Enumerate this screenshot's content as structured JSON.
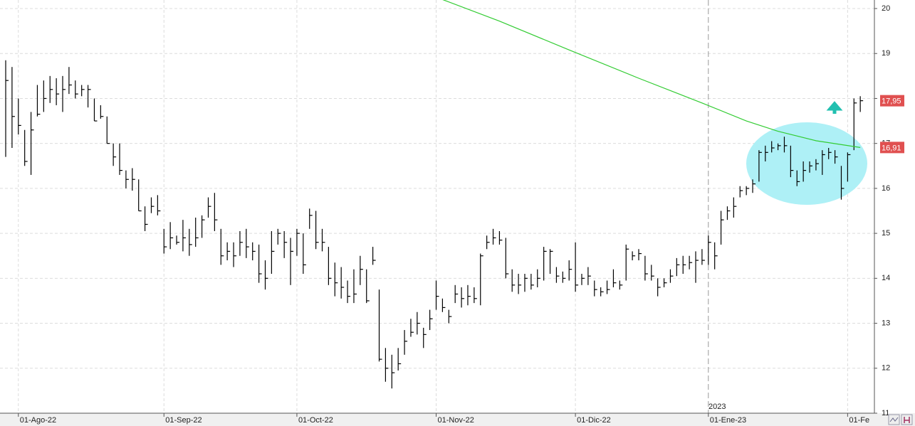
{
  "chart_data": {
    "type": "ohlc",
    "categories": [
      null,
      null,
      "01-Ago-22",
      null,
      null,
      null,
      null,
      null,
      null,
      null,
      null,
      null,
      null,
      null,
      null,
      null,
      null,
      null,
      null,
      null,
      null,
      null,
      null,
      null,
      null,
      "01-Sep-22",
      null,
      null,
      null,
      null,
      null,
      null,
      null,
      null,
      null,
      null,
      null,
      null,
      null,
      null,
      null,
      null,
      null,
      null,
      null,
      null,
      "01-Oct-22",
      null,
      null,
      null,
      null,
      null,
      null,
      null,
      null,
      null,
      null,
      null,
      null,
      null,
      null,
      null,
      null,
      null,
      null,
      null,
      null,
      null,
      "01-Nov-22",
      null,
      null,
      null,
      null,
      null,
      null,
      null,
      null,
      null,
      null,
      null,
      null,
      null,
      null,
      null,
      null,
      null,
      null,
      null,
      null,
      null,
      "01-Dic-22",
      null,
      null,
      null,
      null,
      null,
      null,
      null,
      null,
      null,
      null,
      null,
      null,
      null,
      null,
      null,
      null,
      null,
      null,
      null,
      null,
      "01-Ene-23",
      null,
      null,
      null,
      null,
      null,
      null,
      null,
      null,
      null,
      null,
      null,
      null,
      null,
      null,
      null,
      null,
      null,
      null,
      null,
      null,
      null,
      "01-Fe",
      null,
      null
    ],
    "high": [
      18.85,
      18.7,
      18.0,
      17.3,
      17.7,
      18.3,
      18.4,
      18.5,
      18.45,
      18.5,
      18.7,
      18.4,
      18.3,
      18.3,
      18.0,
      17.85,
      17.6,
      17.0,
      17.0,
      16.4,
      16.45,
      16.2,
      15.6,
      15.8,
      15.85,
      15.1,
      15.25,
      14.95,
      15.3,
      15.1,
      15.35,
      15.4,
      15.8,
      15.9,
      15.1,
      14.8,
      14.8,
      15.05,
      15.1,
      14.8,
      14.75,
      14.4,
      15.05,
      15.1,
      15.05,
      14.9,
      15.1,
      15.0,
      15.55,
      15.5,
      15.1,
      14.7,
      14.35,
      14.25,
      13.95,
      14.2,
      14.5,
      14.2,
      14.7,
      13.75,
      12.45,
      12.3,
      12.45,
      12.85,
      13.1,
      13.25,
      12.9,
      13.3,
      13.95,
      13.55,
      13.3,
      13.85,
      13.8,
      13.85,
      13.8,
      14.55,
      14.95,
      15.1,
      15.05,
      14.9,
      14.2,
      14.1,
      14.1,
      14.1,
      14.2,
      14.7,
      14.65,
      14.25,
      14.15,
      14.4,
      14.8,
      14.1,
      14.25,
      13.95,
      13.8,
      13.95,
      14.2,
      13.95,
      14.75,
      14.6,
      14.65,
      14.5,
      14.3,
      14.0,
      14.0,
      14.2,
      14.45,
      14.5,
      14.5,
      14.6,
      14.65,
      14.95,
      14.8,
      15.5,
      15.6,
      15.8,
      16.05,
      16.05,
      16.2,
      16.85,
      16.95,
      17.05,
      17.0,
      17.15,
      16.95,
      16.4,
      16.6,
      16.6,
      16.65,
      16.85,
      16.9,
      16.85,
      16.5,
      16.8,
      18.0,
      18.05
    ],
    "low": [
      16.7,
      16.9,
      17.2,
      16.5,
      16.3,
      17.6,
      17.7,
      17.9,
      17.85,
      17.7,
      18.1,
      18.0,
      18.05,
      17.8,
      17.5,
      17.55,
      17.0,
      16.5,
      16.3,
      16.0,
      15.95,
      15.5,
      15.05,
      15.45,
      15.4,
      14.55,
      14.65,
      14.75,
      14.6,
      14.5,
      14.7,
      14.9,
      15.35,
      15.05,
      14.3,
      14.4,
      14.25,
      14.5,
      14.45,
      14.4,
      13.9,
      13.75,
      14.1,
      14.75,
      14.45,
      13.85,
      14.5,
      14.1,
      15.1,
      14.65,
      14.6,
      13.85,
      13.6,
      13.55,
      13.45,
      13.45,
      13.85,
      13.45,
      14.3,
      12.15,
      11.7,
      11.55,
      11.95,
      12.3,
      12.7,
      12.75,
      12.45,
      12.85,
      13.3,
      13.25,
      13.0,
      13.45,
      13.35,
      13.4,
      13.45,
      13.4,
      14.65,
      14.75,
      14.75,
      14.0,
      13.7,
      13.65,
      13.7,
      13.75,
      13.8,
      13.95,
      14.1,
      13.9,
      13.9,
      13.95,
      13.7,
      13.85,
      13.85,
      13.6,
      13.6,
      13.65,
      13.8,
      13.75,
      13.95,
      14.4,
      14.4,
      13.95,
      13.95,
      13.6,
      13.8,
      13.9,
      14.05,
      14.1,
      14.2,
      13.9,
      14.3,
      14.3,
      14.2,
      14.75,
      15.3,
      15.35,
      15.8,
      15.85,
      15.9,
      16.15,
      16.6,
      16.8,
      16.85,
      16.8,
      16.25,
      16.05,
      16.15,
      16.35,
      16.4,
      16.3,
      16.65,
      16.55,
      15.75,
      16.15,
      16.85,
      17.7
    ],
    "close": [
      18.4,
      17.6,
      17.4,
      16.6,
      17.3,
      17.65,
      18.0,
      18.2,
      18.1,
      18.2,
      18.3,
      18.1,
      18.2,
      18.2,
      17.5,
      17.6,
      17.0,
      16.7,
      16.4,
      16.2,
      16.2,
      15.5,
      15.2,
      15.6,
      15.5,
      14.7,
      14.9,
      14.8,
      14.9,
      14.75,
      14.9,
      15.3,
      15.6,
      15.3,
      14.5,
      14.6,
      14.5,
      14.8,
      14.7,
      14.6,
      14.1,
      14.0,
      14.6,
      15.0,
      14.8,
      14.6,
      15.0,
      14.3,
      15.4,
      14.8,
      14.8,
      14.0,
      13.9,
      13.8,
      13.6,
      13.65,
      14.2,
      13.5,
      14.4,
      12.2,
      12.0,
      11.9,
      12.1,
      12.6,
      12.8,
      13.0,
      12.75,
      13.1,
      13.6,
      13.35,
      13.15,
      13.65,
      13.55,
      13.6,
      13.55,
      14.5,
      14.8,
      14.9,
      14.85,
      14.1,
      13.85,
      13.85,
      14.0,
      13.85,
      14.0,
      14.6,
      14.6,
      14.05,
      14.0,
      14.2,
      13.85,
      14.0,
      14.05,
      13.75,
      13.7,
      13.75,
      13.9,
      13.85,
      14.65,
      14.5,
      14.55,
      14.1,
      14.05,
      13.8,
      13.9,
      14.05,
      14.3,
      14.3,
      14.35,
      14.4,
      14.4,
      14.8,
      14.5,
      15.3,
      15.5,
      15.6,
      15.95,
      16.0,
      16.1,
      16.8,
      16.8,
      16.9,
      16.95,
      16.95,
      16.4,
      16.15,
      16.4,
      16.5,
      16.55,
      16.75,
      16.8,
      16.7,
      16.0,
      16.75,
      17.9,
      17.95
    ],
    "bar_color": "#000000",
    "moving_average": {
      "color": "#33cc33",
      "x": [
        69,
        78,
        89,
        100,
        110,
        117,
        122,
        128,
        135
      ],
      "values": [
        20.2,
        19.72,
        19.08,
        18.45,
        17.9,
        17.5,
        17.27,
        17.06,
        16.91
      ]
    },
    "price_markers": [
      {
        "value": 17.95,
        "label": "17,95",
        "color": "#e05050"
      },
      {
        "value": 16.91,
        "label": "16,91",
        "color": "#e05050"
      }
    ],
    "year_label": "2023",
    "ylim": [
      11,
      20.19
    ],
    "yticks": [
      11,
      12,
      13,
      14,
      15,
      16,
      17,
      18,
      19,
      20
    ],
    "grid": true
  }
}
